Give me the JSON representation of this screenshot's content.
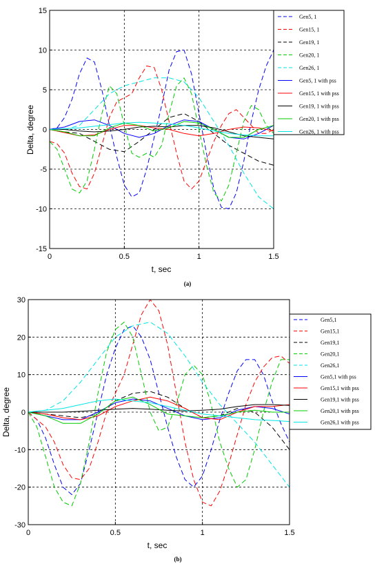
{
  "chart_data": [
    {
      "type": "line",
      "caption": "(a)",
      "xlabel": "t, sec",
      "ylabel": "Delta, degree",
      "xlim": [
        0,
        1.5
      ],
      "ylim": [
        -15,
        15
      ],
      "xticks": [
        "0",
        "0.5",
        "1",
        "1.5"
      ],
      "yticks": [
        "15",
        "10",
        "5",
        "0",
        "-5",
        "-10",
        "-15"
      ],
      "grid": true,
      "legend_position": "top-right, outside axes",
      "series": [
        {
          "name": "Gen5, 1",
          "color": "#0000ff",
          "dash": true,
          "x": [
            0,
            0.05,
            0.1,
            0.15,
            0.2,
            0.25,
            0.3,
            0.35,
            0.4,
            0.45,
            0.5,
            0.55,
            0.6,
            0.65,
            0.7,
            0.75,
            0.8,
            0.85,
            0.9,
            0.95,
            1.0,
            1.05,
            1.1,
            1.15,
            1.2,
            1.25,
            1.3,
            1.35,
            1.4,
            1.45,
            1.5
          ],
          "y": [
            0,
            0.2,
            1.5,
            3.8,
            7.0,
            9.0,
            8.5,
            5.0,
            0.5,
            -3.5,
            -7.0,
            -8.5,
            -8.0,
            -5.0,
            -1.0,
            3.0,
            7.5,
            9.8,
            10.0,
            7.0,
            2.0,
            -3.0,
            -7.5,
            -9.8,
            -10.0,
            -8.0,
            -4.0,
            1.0,
            5.0,
            8.0,
            10.0
          ]
        },
        {
          "name": "Gen15, 1",
          "color": "#ff0000",
          "dash": true,
          "x": [
            0,
            0.05,
            0.1,
            0.15,
            0.2,
            0.25,
            0.3,
            0.35,
            0.4,
            0.45,
            0.5,
            0.55,
            0.6,
            0.65,
            0.7,
            0.75,
            0.8,
            0.85,
            0.9,
            0.95,
            1.0,
            1.05,
            1.1,
            1.15,
            1.2,
            1.25,
            1.3,
            1.35,
            1.4,
            1.45,
            1.5
          ],
          "y": [
            -1.5,
            -1.8,
            -3.0,
            -5.5,
            -7.2,
            -7.5,
            -5.5,
            -2.0,
            1.5,
            3.5,
            4.0,
            4.5,
            6.5,
            8.0,
            7.8,
            5.0,
            1.0,
            -3.0,
            -6.5,
            -7.5,
            -6.5,
            -4.0,
            -1.5,
            0.5,
            2.0,
            2.5,
            1.5,
            0.5,
            -0.5,
            -0.5,
            0.0
          ]
        },
        {
          "name": "Gen19, 1",
          "color": "#000000",
          "dash": true,
          "x": [
            0,
            0.1,
            0.2,
            0.3,
            0.4,
            0.5,
            0.6,
            0.7,
            0.8,
            0.9,
            1.0,
            1.1,
            1.2,
            1.3,
            1.4,
            1.5
          ],
          "y": [
            0,
            -0.3,
            -0.5,
            -1.5,
            -2.5,
            -2.8,
            -1.5,
            0.0,
            1.5,
            2.0,
            1.0,
            -0.5,
            -2.0,
            -3.0,
            -4.0,
            -4.5
          ]
        },
        {
          "name": "Gen20, 1",
          "color": "#00cc00",
          "dash": true,
          "x": [
            0,
            0.05,
            0.1,
            0.15,
            0.2,
            0.25,
            0.3,
            0.35,
            0.4,
            0.45,
            0.5,
            0.55,
            0.6,
            0.65,
            0.7,
            0.75,
            0.8,
            0.85,
            0.9,
            0.95,
            1.0,
            1.05,
            1.1,
            1.15,
            1.2,
            1.25,
            1.3,
            1.35,
            1.4,
            1.45,
            1.5
          ],
          "y": [
            -1.5,
            -2.5,
            -5.0,
            -7.5,
            -8.0,
            -6.5,
            -2.5,
            2.0,
            5.5,
            4.5,
            0.5,
            -3.0,
            -3.5,
            -3.0,
            -3.5,
            -2.0,
            2.0,
            5.5,
            6.5,
            4.5,
            0.0,
            -4.5,
            -8.0,
            -9.0,
            -7.0,
            -3.0,
            1.0,
            3.0,
            2.5,
            0.5,
            -0.5
          ]
        },
        {
          "name": "Gen26, 1",
          "color": "#00e5e5",
          "dash": true,
          "x": [
            0,
            0.1,
            0.2,
            0.3,
            0.4,
            0.5,
            0.6,
            0.7,
            0.8,
            0.9,
            1.0,
            1.1,
            1.2,
            1.3,
            1.4,
            1.5
          ],
          "y": [
            0,
            0.0,
            0.5,
            2.5,
            4.5,
            5.5,
            6.0,
            6.5,
            6.5,
            6.0,
            4.0,
            1.0,
            -2.0,
            -5.5,
            -8.5,
            -10.0
          ]
        },
        {
          "name": "Gen5, 1 with pss",
          "color": "#0000ff",
          "dash": false,
          "x": [
            0,
            0.1,
            0.2,
            0.3,
            0.4,
            0.5,
            0.6,
            0.7,
            0.8,
            0.9,
            1.0,
            1.1,
            1.2,
            1.3,
            1.4,
            1.5
          ],
          "y": [
            0,
            0.3,
            1.0,
            1.2,
            0.5,
            -0.5,
            -1.0,
            -0.5,
            0.5,
            1.2,
            1.0,
            0.0,
            -1.0,
            -1.2,
            -0.5,
            0.5
          ]
        },
        {
          "name": "Gen15, 1 with pss",
          "color": "#ff0000",
          "dash": false,
          "x": [
            0,
            0.1,
            0.2,
            0.3,
            0.4,
            0.5,
            0.6,
            0.7,
            0.8,
            0.9,
            1.0,
            1.1,
            1.2,
            1.3,
            1.4,
            1.5
          ],
          "y": [
            0,
            -0.4,
            -0.8,
            -0.7,
            0.0,
            0.5,
            0.5,
            0.2,
            0.0,
            -0.5,
            -0.8,
            -0.5,
            0.0,
            0.3,
            0.2,
            -0.2
          ]
        },
        {
          "name": "Gen19, 1 with pss",
          "color": "#000000",
          "dash": false,
          "x": [
            0,
            0.1,
            0.2,
            0.3,
            0.4,
            0.5,
            0.6,
            0.7,
            0.8,
            0.9,
            1.0,
            1.1,
            1.2,
            1.3,
            1.4,
            1.5
          ],
          "y": [
            0,
            0.0,
            -0.2,
            -0.3,
            -0.2,
            0.0,
            0.3,
            0.4,
            0.3,
            0.5,
            0.5,
            0.2,
            -0.3,
            -0.8,
            -1.0,
            -1.2
          ]
        },
        {
          "name": "Gen20, 1 with pss",
          "color": "#00cc00",
          "dash": false,
          "x": [
            0,
            0.1,
            0.2,
            0.3,
            0.4,
            0.5,
            0.6,
            0.7,
            0.8,
            0.9,
            1.0,
            1.1,
            1.2,
            1.3,
            1.4,
            1.5
          ],
          "y": [
            0,
            -0.3,
            -0.8,
            -0.8,
            0.2,
            0.8,
            0.5,
            -0.2,
            0.2,
            1.0,
            0.8,
            0.0,
            -1.0,
            -1.0,
            0.0,
            0.5
          ]
        },
        {
          "name": "Gen26, 1 with pss",
          "color": "#00e5e5",
          "dash": false,
          "x": [
            0,
            0.1,
            0.2,
            0.3,
            0.4,
            0.5,
            0.6,
            0.7,
            0.8,
            0.9,
            1.0,
            1.1,
            1.2,
            1.3,
            1.4,
            1.5
          ],
          "y": [
            0,
            0.1,
            0.2,
            0.4,
            0.6,
            0.8,
            0.9,
            0.8,
            0.7,
            0.5,
            0.2,
            -0.2,
            -0.5,
            -0.7,
            -0.8,
            -0.8
          ]
        }
      ]
    },
    {
      "type": "line",
      "caption": "(b)",
      "xlabel": "t, sec",
      "ylabel": "Delta, degree",
      "xlim": [
        0,
        1.5
      ],
      "ylim": [
        -30,
        30
      ],
      "xticks": [
        "0",
        "0.5",
        "1",
        "1.5"
      ],
      "yticks": [
        "30",
        "20",
        "10",
        "0",
        "-10",
        "-20",
        "-30"
      ],
      "grid": true,
      "legend_position": "right, outside axes",
      "series": [
        {
          "name": "Gen5,1",
          "color": "#0000ff",
          "dash": true,
          "x": [
            0,
            0.05,
            0.1,
            0.15,
            0.2,
            0.25,
            0.3,
            0.35,
            0.4,
            0.45,
            0.5,
            0.55,
            0.6,
            0.65,
            0.7,
            0.75,
            0.8,
            0.85,
            0.9,
            0.95,
            1.0,
            1.05,
            1.1,
            1.15,
            1.2,
            1.25,
            1.3,
            1.35,
            1.4,
            1.45,
            1.5
          ],
          "y": [
            0,
            -2.0,
            -7.0,
            -14.0,
            -20.0,
            -22.0,
            -19.0,
            -10.0,
            0.0,
            10.0,
            17.0,
            22.0,
            23.0,
            20.0,
            14.0,
            5.0,
            -4.0,
            -12.0,
            -18.0,
            -20.0,
            -17.0,
            -10.0,
            -2.0,
            5.0,
            11.0,
            14.0,
            14.0,
            10.0,
            3.0,
            -3.0,
            -8.0
          ]
        },
        {
          "name": "Gen15,1",
          "color": "#ff0000",
          "dash": true,
          "x": [
            0,
            0.05,
            0.1,
            0.15,
            0.2,
            0.25,
            0.3,
            0.35,
            0.4,
            0.45,
            0.5,
            0.55,
            0.6,
            0.65,
            0.7,
            0.75,
            0.8,
            0.85,
            0.9,
            0.95,
            1.0,
            1.05,
            1.1,
            1.15,
            1.2,
            1.25,
            1.3,
            1.35,
            1.4,
            1.45,
            1.5
          ],
          "y": [
            0,
            -2.0,
            -4.0,
            -8.0,
            -14.0,
            -17.5,
            -18.0,
            -15.0,
            -8.0,
            0.0,
            5.0,
            10.0,
            18.0,
            26.0,
            30.0,
            27.0,
            18.0,
            5.0,
            -8.0,
            -18.0,
            -24.0,
            -25.0,
            -21.0,
            -14.0,
            -6.0,
            2.0,
            8.0,
            12.0,
            14.5,
            15.0,
            13.0
          ]
        },
        {
          "name": "Gen19,1",
          "color": "#000000",
          "dash": true,
          "x": [
            0,
            0.1,
            0.2,
            0.3,
            0.4,
            0.5,
            0.6,
            0.7,
            0.8,
            0.9,
            1.0,
            1.1,
            1.2,
            1.3,
            1.4,
            1.5
          ],
          "y": [
            0,
            -0.5,
            -1.0,
            -1.5,
            -0.5,
            3.0,
            5.0,
            5.5,
            4.0,
            1.0,
            -1.5,
            -1.0,
            1.0,
            0.0,
            -4.0,
            -10.0
          ]
        },
        {
          "name": "Gen20,1",
          "color": "#00cc00",
          "dash": true,
          "x": [
            0,
            0.05,
            0.1,
            0.15,
            0.2,
            0.25,
            0.3,
            0.35,
            0.4,
            0.45,
            0.5,
            0.55,
            0.6,
            0.65,
            0.7,
            0.75,
            0.8,
            0.85,
            0.9,
            0.95,
            1.0,
            1.05,
            1.1,
            1.15,
            1.2,
            1.25,
            1.3,
            1.35,
            1.4,
            1.45,
            1.5
          ],
          "y": [
            0,
            -4.0,
            -12.0,
            -20.0,
            -24.0,
            -25.0,
            -19.0,
            -8.0,
            5.0,
            16.0,
            22.0,
            24.0,
            20.0,
            10.0,
            0.0,
            -5.0,
            -4.0,
            2.0,
            10.0,
            12.5,
            10.0,
            2.0,
            -8.0,
            -15.0,
            -20.0,
            -18.0,
            -10.0,
            0.0,
            8.0,
            14.0,
            14.0
          ]
        },
        {
          "name": "Gen26,1",
          "color": "#00e5e5",
          "dash": true,
          "x": [
            0,
            0.1,
            0.2,
            0.3,
            0.4,
            0.5,
            0.6,
            0.7,
            0.8,
            0.9,
            1.0,
            1.1,
            1.2,
            1.3,
            1.4,
            1.5
          ],
          "y": [
            0,
            0.5,
            3.0,
            8.0,
            14.0,
            20.0,
            23.0,
            24.0,
            21.0,
            15.0,
            8.0,
            2.0,
            -3.0,
            -8.0,
            -14.0,
            -20.0
          ]
        },
        {
          "name": "Gen5,1 with pss",
          "color": "#0000ff",
          "dash": false,
          "x": [
            0,
            0.1,
            0.2,
            0.3,
            0.4,
            0.5,
            0.6,
            0.7,
            0.8,
            0.9,
            1.0,
            1.1,
            1.2,
            1.3,
            1.4,
            1.5
          ],
          "y": [
            0,
            -1.0,
            -2.0,
            -2.0,
            0.0,
            2.5,
            3.5,
            3.0,
            1.0,
            -1.0,
            -2.0,
            -1.5,
            0.5,
            1.5,
            1.0,
            -0.5
          ]
        },
        {
          "name": "Gen15,1 with pss",
          "color": "#ff0000",
          "dash": false,
          "x": [
            0,
            0.1,
            0.2,
            0.3,
            0.4,
            0.5,
            0.6,
            0.7,
            0.8,
            0.9,
            1.0,
            1.1,
            1.2,
            1.3,
            1.4,
            1.5
          ],
          "y": [
            0,
            -0.5,
            -1.5,
            -2.0,
            -1.0,
            1.5,
            3.0,
            4.0,
            3.0,
            1.0,
            -1.5,
            -2.0,
            0.0,
            1.5,
            1.5,
            2.0
          ]
        },
        {
          "name": "Gen19,1 with pss",
          "color": "#000000",
          "dash": false,
          "x": [
            0,
            0.1,
            0.2,
            0.3,
            0.4,
            0.5,
            0.6,
            0.7,
            0.8,
            0.9,
            1.0,
            1.1,
            1.2,
            1.3,
            1.4,
            1.5
          ],
          "y": [
            0,
            0.0,
            0.0,
            0.2,
            0.5,
            0.8,
            1.0,
            0.8,
            0.5,
            0.3,
            0.5,
            0.8,
            1.5,
            2.0,
            2.0,
            1.8
          ]
        },
        {
          "name": "Gen20,1 with pss",
          "color": "#00cc00",
          "dash": false,
          "x": [
            0,
            0.1,
            0.2,
            0.3,
            0.4,
            0.5,
            0.6,
            0.7,
            0.8,
            0.9,
            1.0,
            1.1,
            1.2,
            1.3,
            1.4,
            1.5
          ],
          "y": [
            0,
            -1.0,
            -3.0,
            -3.0,
            -0.5,
            3.0,
            4.0,
            2.0,
            -0.5,
            -1.0,
            -1.5,
            -1.0,
            0.0,
            0.5,
            0.0,
            0.0
          ]
        },
        {
          "name": "Gen26,1 with pss",
          "color": "#00e5e5",
          "dash": false,
          "x": [
            0,
            0.1,
            0.2,
            0.3,
            0.4,
            0.5,
            0.6,
            0.7,
            0.8,
            0.9,
            1.0,
            1.1,
            1.2,
            1.3,
            1.4,
            1.5
          ],
          "y": [
            0,
            0.5,
            1.0,
            2.0,
            3.0,
            3.5,
            3.0,
            2.5,
            1.5,
            0.5,
            -0.5,
            -1.0,
            -1.5,
            -2.0,
            -2.2,
            -2.5
          ]
        }
      ]
    }
  ]
}
